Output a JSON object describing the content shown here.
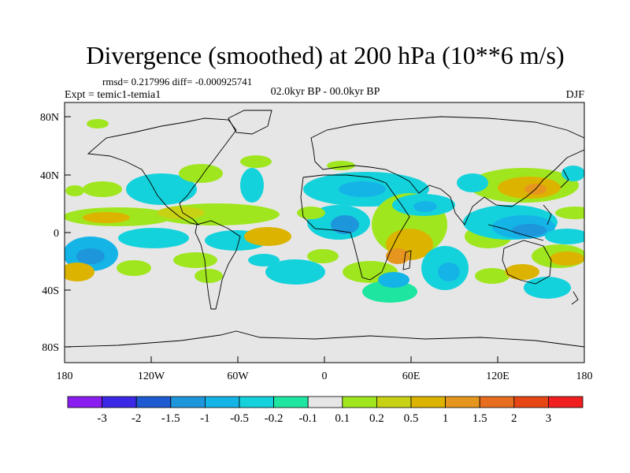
{
  "title": "Divergence (smoothed) at 200 hPa (10**6 m/s)",
  "stats_line": "rmsd= 0.217996 diff= -0.000925741",
  "experiment": "Expt = temic1-temia1",
  "period": "02.0kyr BP - 00.0kyr BP",
  "season": "DJF",
  "lat_ticks": [
    "80N",
    "40N",
    "0",
    "40S",
    "80S"
  ],
  "lon_ticks": [
    "180",
    "120W",
    "60W",
    "0",
    "60E",
    "120E",
    "180"
  ],
  "colorbar": {
    "colors": [
      "#8a1ef0",
      "#3a28e6",
      "#1e5ad2",
      "#1e96dc",
      "#14b4e6",
      "#14d2dc",
      "#1ee6a0",
      "#e6e6e6",
      "#a0e61e",
      "#c8d214",
      "#dcb400",
      "#e6961e",
      "#e66e1e",
      "#e64614",
      "#f01e1e"
    ],
    "labels": [
      "-3",
      "-2",
      "-1.5",
      "-1",
      "-0.5",
      "-0.2",
      "-0.1",
      "0.1",
      "0.2",
      "0.5",
      "1",
      "1.5",
      "2",
      "3"
    ]
  },
  "map_colors": {
    "background": "#e6e6e6",
    "coast": "#000000"
  }
}
